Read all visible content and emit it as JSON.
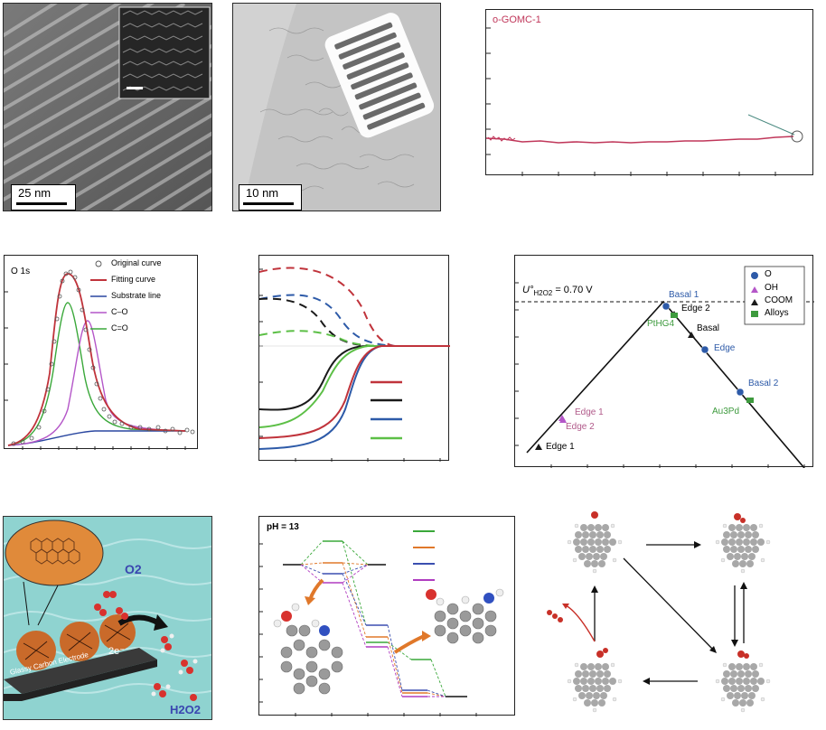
{
  "panel_a": {
    "scale_bar": "25 nm"
  },
  "panel_b": {
    "scale_bar": "10 nm"
  },
  "panel_c": {
    "sample_label": "o-GOMC-1"
  },
  "panel_d": {
    "peak_label": "O 1s",
    "legend": [
      "Original curve",
      "Fitting curve",
      "Substrate line",
      "C–O",
      "C=O"
    ]
  },
  "panel_f": {
    "u_label": "U°",
    "u_sub": "H2O2",
    "u_value": "= 0.70 V",
    "legend": [
      "O",
      "OH",
      "COOM",
      "Alloys"
    ],
    "points": {
      "basal1": "Basal 1",
      "edge2_top": "Edge 2",
      "pthg4": "PtHG4",
      "basal": "Basal",
      "edge": "Edge",
      "basal2": "Basal 2",
      "au3pd": "Au3Pd",
      "edge1_oh": "Edge 1",
      "edge2_oh": "Edge 2",
      "edge1_coom": "Edge 1"
    }
  },
  "panel_g": {
    "electrode": "Glassy Carbon Electrode",
    "o2": "O2",
    "h2o2": "H2O2",
    "electrons": "2e⁻"
  },
  "panel_h": {
    "ph_label": "pH = 13"
  },
  "colors": {
    "red": "#c0333b",
    "blue": "#2d4fa3",
    "green": "#3aa83a",
    "purple": "#b456c8",
    "black": "#1a1a1a",
    "olive": "#3d9a3d",
    "pink": "#b15a8a"
  }
}
